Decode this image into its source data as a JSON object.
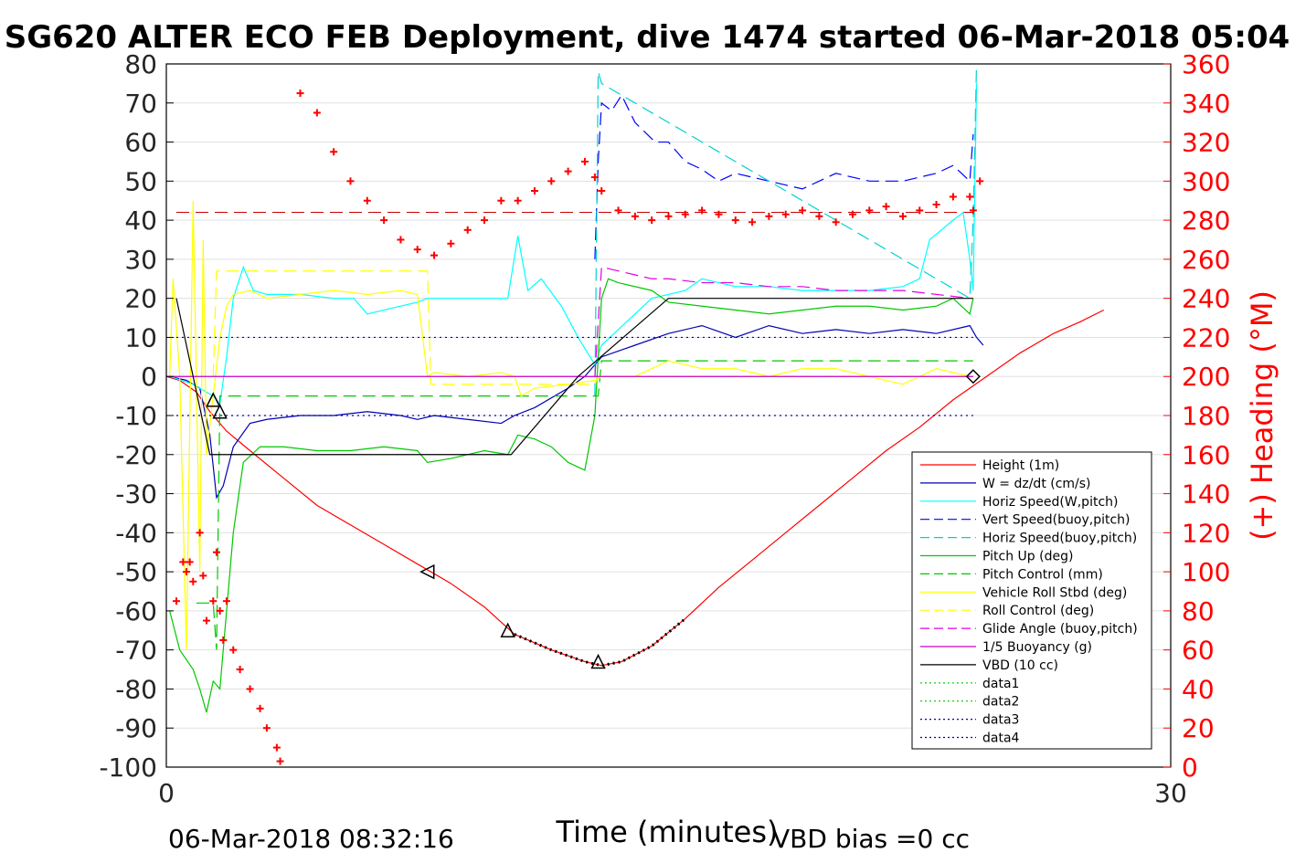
{
  "chart_data": {
    "type": "line",
    "title": "SG620 ALTER ECO FEB Deployment, dive 1474 started 06-Mar-2018 05:04",
    "xlabel": "Time (minutes)",
    "ylabel_right": "(+) Heading (°M)",
    "xlim": [
      0,
      30
    ],
    "ylim": [
      -100,
      80
    ],
    "ylim_right": [
      0,
      360
    ],
    "x_ticks": [
      "0",
      "30"
    ],
    "y_ticks": [
      "80",
      "70",
      "60",
      "50",
      "40",
      "30",
      "20",
      "10",
      "0",
      "-10",
      "-20",
      "-30",
      "-40",
      "-50",
      "-60",
      "-70",
      "-80",
      "-90",
      "-100"
    ],
    "y_ticks_right": [
      "360",
      "340",
      "320",
      "300",
      "280",
      "260",
      "240",
      "220",
      "200",
      "180",
      "160",
      "140",
      "120",
      "100",
      "80",
      "60",
      "40",
      "20",
      "0"
    ],
    "footer_left": "06-Mar-2018 08:32:16",
    "footer_right": "VBD bias =0 cc",
    "grid": true,
    "legend_position": "lower-right",
    "series": [
      {
        "name": "Height (1m)",
        "color": "#ff0000",
        "style": "solid",
        "x": [
          0,
          0.4,
          0.9,
          1.3,
          1.8,
          2.5,
          3.5,
          4.5,
          5.5,
          6.5,
          7.5,
          8.5,
          9.5,
          10.4,
          11.5,
          12.5,
          13.0,
          13.6,
          14.5,
          15.5,
          16.5,
          17.5,
          18.5,
          19.5,
          20.5,
          21.5,
          22.5,
          23.5,
          24.5,
          25.5,
          26.5,
          27.3,
          28.0
        ],
        "y": [
          0,
          -1,
          -4,
          -9,
          -14,
          -19,
          -26,
          -33,
          -38,
          -43,
          -48,
          -53,
          -59,
          -66,
          -70,
          -73,
          -74,
          -73,
          -69,
          -62,
          -54,
          -47,
          -40,
          -33,
          -26,
          -19,
          -13,
          -6,
          0,
          6,
          11,
          14,
          17
        ]
      },
      {
        "name": "W = dz/dt (cm/s)",
        "color": "#0000b4",
        "style": "solid",
        "x": [
          0.1,
          0.6,
          1.0,
          1.3,
          1.5,
          1.7,
          2.0,
          2.5,
          3.0,
          4.0,
          5.0,
          6.0,
          7.0,
          7.5,
          8.0,
          9.0,
          10.0,
          10.4,
          11.0,
          12.0,
          12.5,
          12.8,
          13.0,
          14.0,
          15.0,
          16.0,
          17.0,
          18.0,
          19.0,
          20.0,
          21.0,
          22.0,
          23.0,
          24.0,
          24.2,
          24.4
        ],
        "y": [
          0,
          -1,
          -3,
          -15,
          -31,
          -28,
          -18,
          -12,
          -11,
          -10,
          -10,
          -9,
          -10,
          -11,
          -10,
          -11,
          -12,
          -10,
          -8,
          -3,
          0,
          3,
          5,
          8,
          11,
          13,
          10,
          13,
          11,
          12,
          11,
          12,
          11,
          13,
          10,
          8
        ]
      },
      {
        "name": "Horiz Speed(W,pitch)",
        "color": "#00ffff",
        "style": "solid",
        "x": [
          0.1,
          0.8,
          1.4,
          1.6,
          1.8,
          2.0,
          2.3,
          2.6,
          3.0,
          4.0,
          5.0,
          5.6,
          6.0,
          7.0,
          7.5,
          7.8,
          8.5,
          9.5,
          10.2,
          10.5,
          10.8,
          11.2,
          11.8,
          12.3,
          12.8,
          13.0,
          13.5,
          14.5,
          15.5,
          16.0,
          17.0,
          18.0,
          19.0,
          20.0,
          21.0,
          22.0,
          22.5,
          22.8,
          23.5,
          23.8,
          24.0,
          24.1,
          24.2
        ],
        "y": [
          0,
          -2,
          -5,
          -7,
          5,
          20,
          28,
          22,
          21,
          21,
          20,
          20,
          16,
          18,
          19,
          20,
          20,
          20,
          20,
          36,
          22,
          25,
          18,
          10,
          3,
          8,
          12,
          20,
          22,
          25,
          23,
          23,
          22,
          22,
          22,
          23,
          25,
          35,
          40,
          42,
          30,
          22,
          75
        ]
      },
      {
        "name": "Vert Speed(buoy,pitch)",
        "color": "#0000ff",
        "style": "dashed",
        "x": [
          12.8,
          12.9,
          13.0,
          13.3,
          13.6,
          14.0,
          14.6,
          15.0,
          15.5,
          16.0,
          16.5,
          17.0,
          18.0,
          19.0,
          20.0,
          21.0,
          22.0,
          23.0,
          23.5,
          24.0,
          24.1
        ],
        "y": [
          30,
          55,
          70,
          68,
          72,
          65,
          60,
          60,
          55,
          53,
          50,
          52,
          50,
          48,
          52,
          50,
          50,
          52,
          54,
          50,
          62
        ]
      },
      {
        "name": "Horiz Speed(buoy,pitch)",
        "color": "#00d2d2",
        "style": "dashed",
        "x": [
          12.8,
          12.9,
          13.0,
          24.0,
          24.1,
          24.2
        ],
        "y": [
          -5,
          78,
          75,
          20,
          40,
          80
        ]
      },
      {
        "name": "Pitch Up (deg)",
        "color": "#00c800",
        "style": "solid",
        "x": [
          0.1,
          0.4,
          0.8,
          1.0,
          1.2,
          1.4,
          1.6,
          1.8,
          2.0,
          2.3,
          2.8,
          3.5,
          4.5,
          5.5,
          6.5,
          7.5,
          7.8,
          8.5,
          9.5,
          10.2,
          10.5,
          11.0,
          11.5,
          12.0,
          12.5,
          12.8,
          13.0,
          13.2,
          13.5,
          14.5,
          15.0,
          16.0,
          17.0,
          18.0,
          19.0,
          20.0,
          21.0,
          22.0,
          23.0,
          23.5,
          24.0,
          24.1
        ],
        "y": [
          -60,
          -70,
          -75,
          -80,
          -86,
          -78,
          -80,
          -60,
          -40,
          -22,
          -18,
          -18,
          -19,
          -19,
          -18,
          -19,
          -22,
          -21,
          -19,
          -20,
          -15,
          -16,
          -18,
          -22,
          -24,
          -10,
          20,
          25,
          24,
          22,
          19,
          18,
          17,
          16,
          17,
          18,
          18,
          17,
          18,
          20,
          16,
          20
        ]
      },
      {
        "name": "Pitch Control (mm)",
        "color": "#00c800",
        "style": "dashed",
        "x": [
          0.9,
          1.0,
          1.4,
          1.5,
          1.6,
          12.8,
          12.9,
          13.0,
          24.1
        ],
        "y": [
          -58,
          -58,
          -58,
          -70,
          -5,
          -5,
          -5,
          4,
          4
        ]
      },
      {
        "name": "Vehicle Roll Stbd (deg)",
        "color": "#ffff00",
        "style": "solid",
        "x": [
          0.1,
          0.2,
          0.4,
          0.6,
          0.8,
          1.0,
          1.1,
          1.2,
          1.4,
          1.6,
          1.8,
          2.0,
          2.5,
          3.0,
          4.0,
          5.0,
          6.0,
          7.0,
          7.5,
          7.8,
          8.0,
          9.0,
          10.0,
          10.4,
          10.6,
          11.0,
          12.0,
          12.8,
          13.0,
          14.0,
          15.0,
          16.0,
          17.0,
          18.0,
          19.0,
          20.0,
          21.0,
          22.0,
          23.0,
          24.0
        ],
        "y": [
          0,
          25,
          0,
          -70,
          45,
          -50,
          35,
          -20,
          -5,
          10,
          18,
          21,
          22,
          20,
          21,
          22,
          21,
          22,
          21,
          0,
          1,
          0,
          1,
          0,
          -5,
          -3,
          -2,
          -1,
          0,
          0,
          4,
          2,
          2,
          0,
          2,
          2,
          0,
          -2,
          2,
          0
        ]
      },
      {
        "name": "Roll Control (deg)",
        "color": "#ffff00",
        "style": "dashed",
        "x": [
          1.4,
          1.5,
          7.8,
          7.9,
          12.8,
          12.9,
          24.1
        ],
        "y": [
          0,
          27,
          27,
          -2,
          -2,
          0,
          0
        ]
      },
      {
        "name": "Glide Angle (buoy,pitch)",
        "color": "#e100e1",
        "style": "dashed",
        "x": [
          12.8,
          13.0,
          13.5,
          14.0,
          14.5,
          15.0,
          16.0,
          17.0,
          18.0,
          19.0,
          20.0,
          21.0,
          22.0,
          23.0,
          24.0
        ],
        "y": [
          0,
          28,
          27,
          26,
          25,
          25,
          24,
          24,
          23,
          23,
          22,
          22,
          22,
          21,
          20
        ]
      },
      {
        "name": "1/5 Buoyancy (g)",
        "color": "#c800c8",
        "style": "solid",
        "x": [
          0,
          24.1
        ],
        "y": [
          0,
          0
        ]
      },
      {
        "name": "VBD (10 cc)",
        "color": "#000000",
        "style": "solid",
        "x": [
          0.3,
          1.3,
          2.0,
          10.3,
          12.3,
          15.0,
          24.1
        ],
        "y": [
          20,
          -20,
          -20,
          -20,
          0,
          20,
          20
        ]
      },
      {
        "name": "data1",
        "color": "#00c800",
        "style": "dotted",
        "x": [],
        "y": []
      },
      {
        "name": "data2",
        "color": "#00c800",
        "style": "dotted",
        "x": [],
        "y": []
      },
      {
        "name": "data3",
        "color": "#0000b4",
        "style": "dotted",
        "x": [
          0.3,
          24.1
        ],
        "y": [
          10,
          10
        ]
      },
      {
        "name": "data4",
        "color": "#0000b4",
        "style": "dotted",
        "x": [
          0.3,
          24.1
        ],
        "y": [
          -10,
          -10
        ]
      }
    ],
    "reference_line": {
      "color": "#c80000",
      "style": "dashed",
      "x": [
        0.3,
        24.1
      ],
      "y": [
        42,
        42
      ]
    },
    "heading_markers": {
      "color": "#ff0000",
      "x": [
        0.3,
        0.5,
        0.6,
        0.7,
        0.8,
        1.0,
        1.1,
        1.2,
        1.4,
        1.5,
        1.6,
        1.7,
        1.8,
        2.0,
        2.2,
        2.5,
        2.8,
        3.0,
        3.3,
        3.4,
        4.0,
        4.5,
        5.0,
        5.5,
        6.0,
        6.5,
        7.0,
        7.5,
        8.0,
        8.5,
        9.0,
        9.5,
        10.0,
        10.5,
        11.0,
        11.5,
        12.0,
        12.5,
        12.8,
        13.0,
        13.5,
        14.0,
        14.5,
        15.0,
        15.5,
        16.0,
        16.5,
        17.0,
        17.5,
        18.0,
        18.5,
        19.0,
        19.5,
        20.0,
        20.5,
        21.0,
        21.5,
        22.0,
        22.5,
        23.0,
        23.5,
        24.0,
        24.1,
        24.3
      ],
      "y": [
        85,
        105,
        100,
        105,
        95,
        120,
        98,
        75,
        85,
        110,
        80,
        65,
        85,
        60,
        50,
        40,
        30,
        20,
        10,
        3,
        345,
        335,
        315,
        300,
        290,
        280,
        270,
        265,
        262,
        268,
        275,
        280,
        290,
        290,
        295,
        300,
        305,
        310,
        302,
        295,
        285,
        282,
        280,
        282,
        283,
        285,
        283,
        280,
        279,
        282,
        283,
        285,
        282,
        279,
        283,
        285,
        287,
        282,
        285,
        288,
        292,
        292,
        285,
        300
      ]
    },
    "triangle_markers": [
      {
        "x": 1.4,
        "y": -6,
        "dir": "up"
      },
      {
        "x": 1.6,
        "y": -9,
        "dir": "up"
      },
      {
        "x": 7.8,
        "y": -50,
        "dir": "left"
      },
      {
        "x": 10.2,
        "y": -65,
        "dir": "up"
      },
      {
        "x": 12.9,
        "y": -73,
        "dir": "up"
      },
      {
        "x": 24.1,
        "y": 0,
        "dir": "diamond"
      }
    ]
  }
}
